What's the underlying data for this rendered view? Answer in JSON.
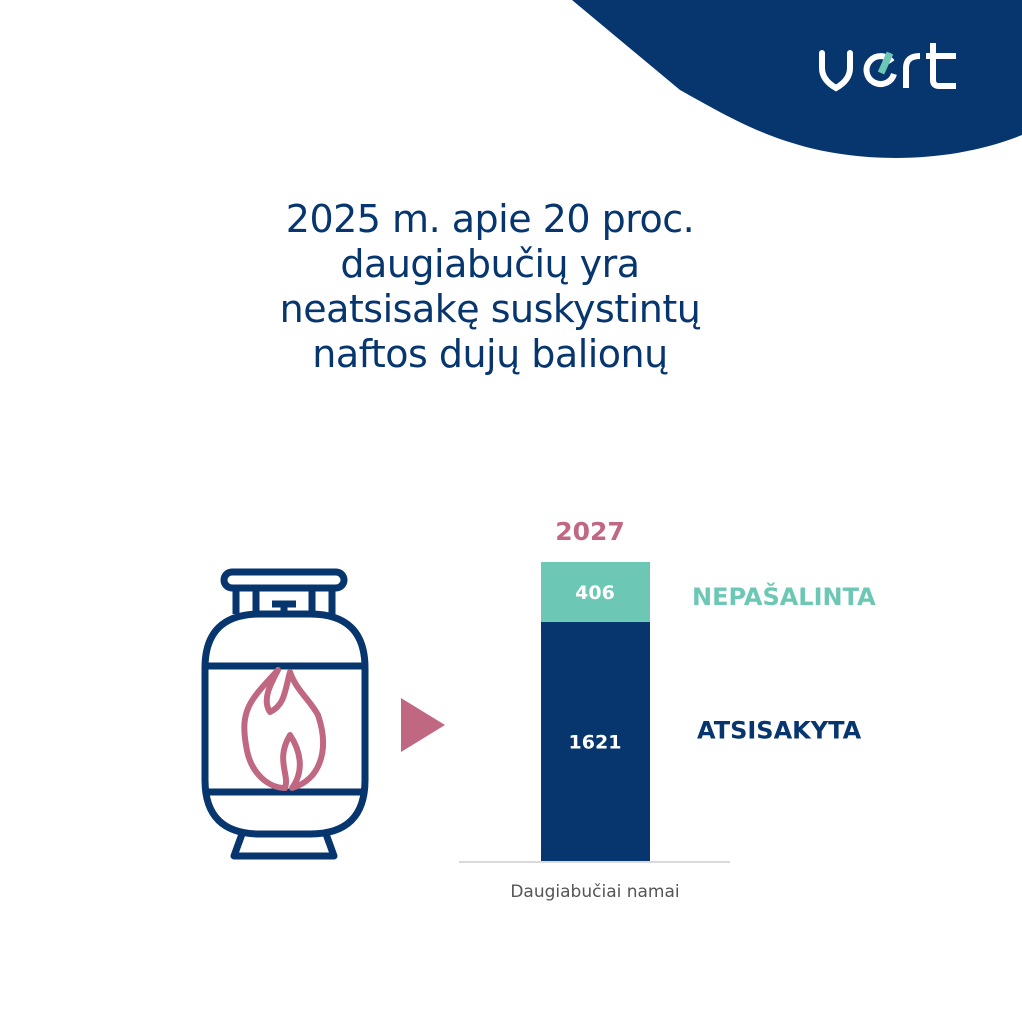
{
  "brand": {
    "logo_text": "vert",
    "colors": {
      "navy": "#07366f",
      "teal": "#6cc8b4",
      "pink": "#c06882"
    }
  },
  "headline": {
    "lines": [
      "2025 m. apie 20 proc.",
      "daugiabučių yra",
      "neatsisakę suskystintų",
      "naftos dujų balionų"
    ]
  },
  "icons": {
    "cylinder": "gas-cylinder-flame-icon",
    "arrow": "triangle-right-icon"
  },
  "chart_data": {
    "type": "bar",
    "stacked": true,
    "categories": [
      "Daugiabučiai namai"
    ],
    "total_label": "2027",
    "total": 2027,
    "series": [
      {
        "name": "ATSISAKYTA",
        "values": [
          1621
        ],
        "color": "#07366f",
        "label": "1621"
      },
      {
        "name": "NEPAŠALINTA",
        "values": [
          406
        ],
        "color": "#6cc8b4",
        "label": "406"
      }
    ],
    "ylim": [
      0,
      2027
    ],
    "grid": false,
    "legend": "right"
  }
}
